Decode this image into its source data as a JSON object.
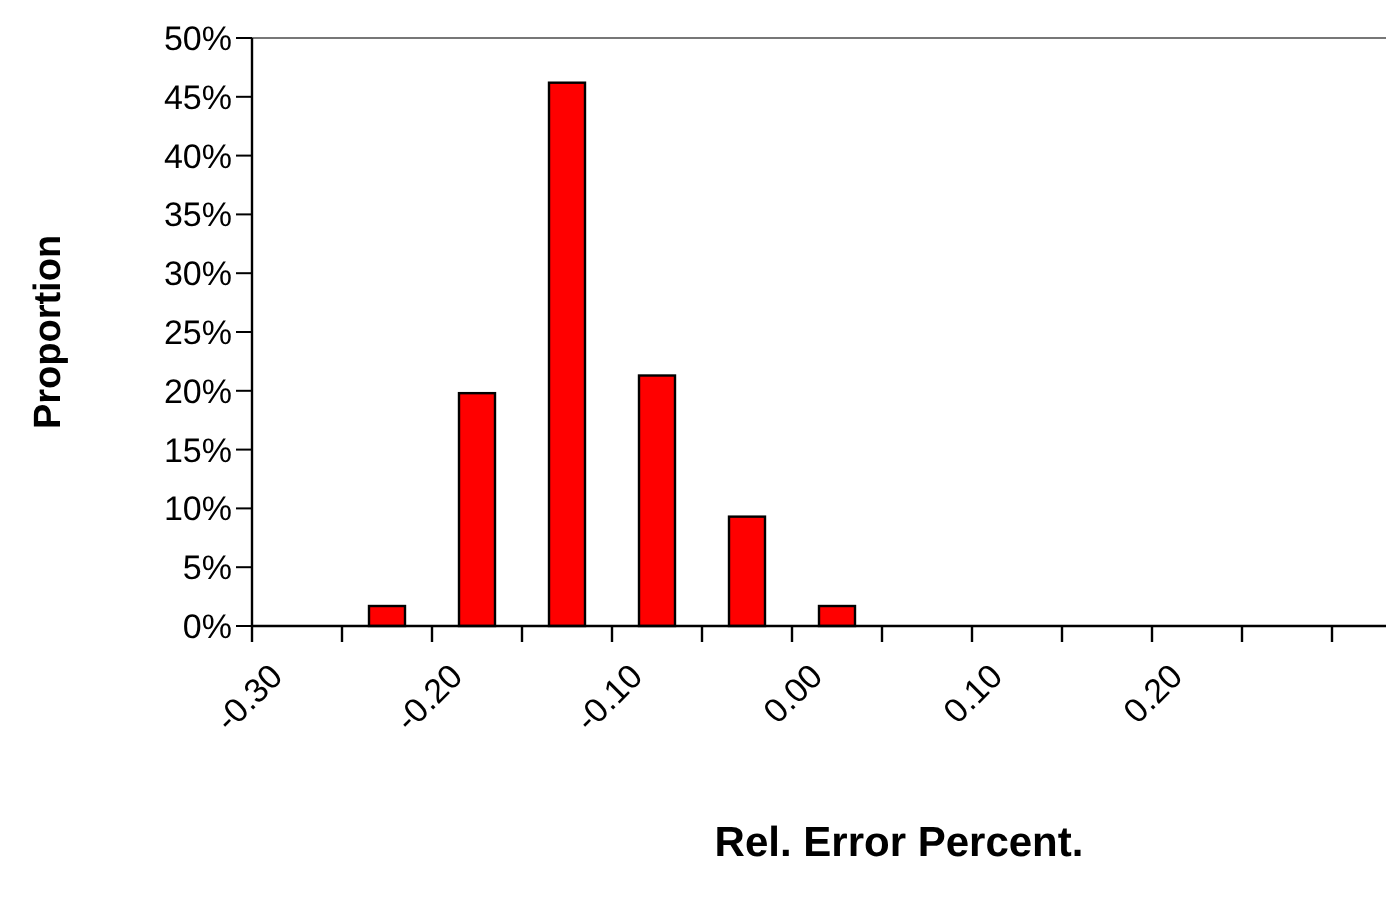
{
  "chart_data": {
    "type": "histogram",
    "xlabel": "Rel. Error Percent.",
    "ylabel": "Proportion",
    "bins": [
      -0.3,
      -0.25,
      -0.2,
      -0.15,
      -0.1,
      -0.05,
      0.0,
      0.05,
      0.1,
      0.15,
      0.2,
      0.25,
      0.3
    ],
    "values": [
      0,
      1.7,
      19.8,
      46.2,
      21.3,
      9.3,
      1.7,
      0,
      0,
      0,
      0,
      0
    ],
    "color": "#ff0000",
    "xlim": [
      -0.3,
      0.33
    ],
    "xticks": [
      {
        "value": -0.3,
        "label": "-0.30"
      },
      {
        "value": -0.25,
        "label": null
      },
      {
        "value": -0.2,
        "label": "-0.20"
      },
      {
        "value": -0.15,
        "label": null
      },
      {
        "value": -0.1,
        "label": "-0.10"
      },
      {
        "value": -0.05,
        "label": null
      },
      {
        "value": 0.0,
        "label": "0.00"
      },
      {
        "value": 0.05,
        "label": null
      },
      {
        "value": 0.1,
        "label": "0.10"
      },
      {
        "value": 0.15,
        "label": null
      },
      {
        "value": 0.2,
        "label": "0.20"
      },
      {
        "value": 0.25,
        "label": null
      },
      {
        "value": 0.3,
        "label": null
      }
    ],
    "ylim": [
      0,
      50
    ],
    "yticks": [
      {
        "value": 0,
        "label": "0%"
      },
      {
        "value": 5,
        "label": "5%"
      },
      {
        "value": 10,
        "label": "10%"
      },
      {
        "value": 15,
        "label": "15%"
      },
      {
        "value": 20,
        "label": "20%"
      },
      {
        "value": 25,
        "label": "25%"
      },
      {
        "value": 30,
        "label": "30%"
      },
      {
        "value": 35,
        "label": "35%"
      },
      {
        "value": 40,
        "label": "40%"
      },
      {
        "value": 45,
        "label": "45%"
      },
      {
        "value": 50,
        "label": "50%"
      }
    ],
    "grid": false
  }
}
